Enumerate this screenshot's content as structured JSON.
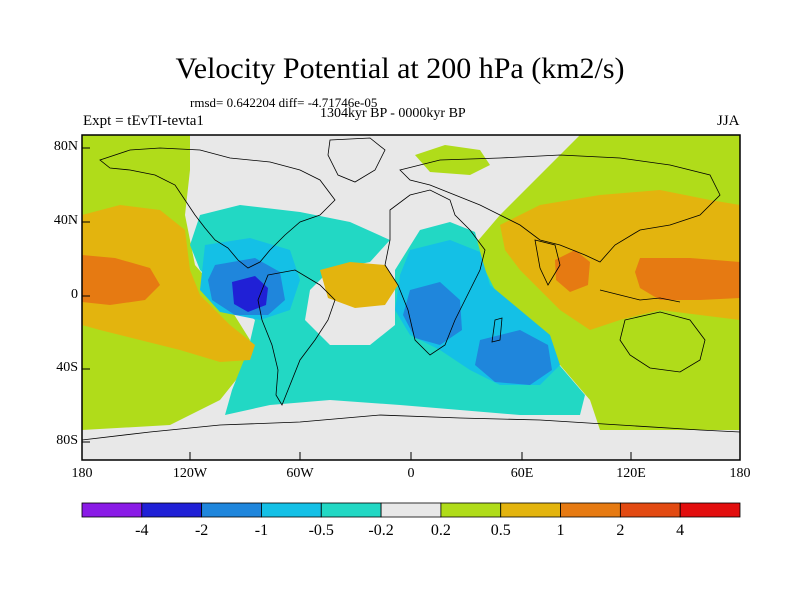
{
  "header": {
    "title": "Velocity Potential at 200 hPa (km2/s)",
    "stats": "rmsd= 0.642204 diff= -4.71746e-05",
    "subtitle": "1304kyr BP - 0000kyr BP",
    "experiment": "Expt = tEvTI-tevta1",
    "season": "JJA"
  },
  "axes": {
    "lat_labels": [
      "80N",
      "40N",
      "0",
      "40S",
      "80S"
    ],
    "lon_labels": [
      "180",
      "120W",
      "60W",
      "0",
      "60E",
      "120E",
      "180"
    ]
  },
  "colorbar": {
    "colors": [
      "#8a1be6",
      "#2020d6",
      "#1f86dc",
      "#14c0e6",
      "#22d8c4",
      "#e8e8e8",
      "#b0dc1a",
      "#e3b40e",
      "#e67a12",
      "#e24a12",
      "#e20e0e"
    ],
    "labels": [
      "-4",
      "-2",
      "-1",
      "-0.5",
      "-0.2",
      "0.2",
      "0.5",
      "1",
      "2",
      "4"
    ]
  },
  "palette": {
    "neutral": "#e8e8e8",
    "pos_weak": "#b0dc1a",
    "pos_mid": "#e3b40e",
    "pos_strong": "#e67a12",
    "neg_weak": "#22d8c4",
    "neg_mid": "#14c0e6",
    "neg_strong": "#1f86dc",
    "neg_max": "#2020d6"
  }
}
